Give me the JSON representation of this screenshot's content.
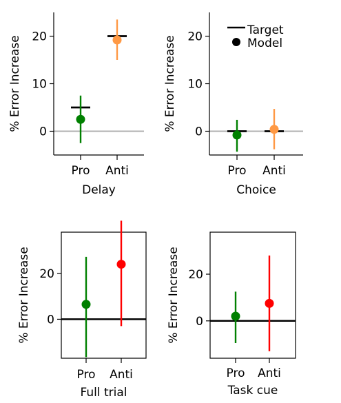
{
  "colors": {
    "pro": "#008000",
    "anti_orange": "#ff9944",
    "anti_red": "#ff0000",
    "zero_line_gray": "#b0b0b0",
    "zero_line_black": "#000000",
    "target": "#000000"
  },
  "legend": {
    "target_label": "Target",
    "model_label": "Model"
  },
  "chart_data": [
    {
      "type": "scatter",
      "subtype": "errorbar",
      "xlabel": "Delay",
      "ylabel": "% Error Increase",
      "categories": [
        "Pro",
        "Anti"
      ],
      "ylim": [
        -5,
        25
      ],
      "yticks": [
        0,
        10,
        20
      ],
      "ytick_labels": [
        "0",
        "10",
        "20"
      ],
      "spines": "left-bottom",
      "zero_line": "gray",
      "target_shown": true,
      "series": [
        {
          "name": "Target",
          "values": [
            5.0,
            20.0
          ]
        },
        {
          "name": "Model",
          "values": [
            2.5,
            19.2
          ],
          "err_low": [
            -2.5,
            15.0
          ],
          "err_high": [
            7.5,
            23.5
          ],
          "colors": [
            "#008000",
            "#ff9944"
          ]
        }
      ]
    },
    {
      "type": "scatter",
      "subtype": "errorbar",
      "xlabel": "Choice",
      "ylabel": "% Error Increase",
      "categories": [
        "Pro",
        "Anti"
      ],
      "ylim": [
        -5,
        25
      ],
      "yticks": [
        0,
        10,
        20
      ],
      "ytick_labels": [
        "0",
        "10",
        "20"
      ],
      "spines": "left-bottom",
      "zero_line": "gray",
      "target_shown": true,
      "legend": "top-right",
      "series": [
        {
          "name": "Target",
          "values": [
            0.0,
            0.0
          ]
        },
        {
          "name": "Model",
          "values": [
            -0.8,
            0.4
          ],
          "err_low": [
            -4.3,
            -3.8
          ],
          "err_high": [
            2.4,
            4.7
          ],
          "colors": [
            "#008000",
            "#ff9944"
          ]
        }
      ]
    },
    {
      "type": "scatter",
      "subtype": "errorbar",
      "xlabel": "Full trial",
      "ylabel": "% Error Increase",
      "categories": [
        "Pro",
        "Anti"
      ],
      "ylim": [
        -17,
        38
      ],
      "yticks": [
        0,
        20
      ],
      "ytick_labels": [
        "0",
        "20"
      ],
      "spines": "box",
      "zero_line": "black",
      "target_shown": false,
      "series": [
        {
          "name": "Model",
          "values": [
            6.5,
            24.0
          ],
          "err_low": [
            -16.5,
            -3.0
          ],
          "err_high": [
            27.2,
            43.0
          ],
          "colors": [
            "#008000",
            "#ff0000"
          ]
        }
      ]
    },
    {
      "type": "scatter",
      "subtype": "errorbar",
      "xlabel": "Task cue",
      "ylabel": "% Error Increase",
      "categories": [
        "Pro",
        "Anti"
      ],
      "ylim": [
        -16,
        38
      ],
      "yticks": [
        0,
        20
      ],
      "ytick_labels": [
        "0",
        "20"
      ],
      "spines": "box",
      "zero_line": "black",
      "target_shown": false,
      "series": [
        {
          "name": "Model",
          "values": [
            2.0,
            7.5
          ],
          "err_low": [
            -9.5,
            -13.0
          ],
          "err_high": [
            12.5,
            28.0
          ],
          "colors": [
            "#008000",
            "#ff0000"
          ]
        }
      ]
    }
  ]
}
